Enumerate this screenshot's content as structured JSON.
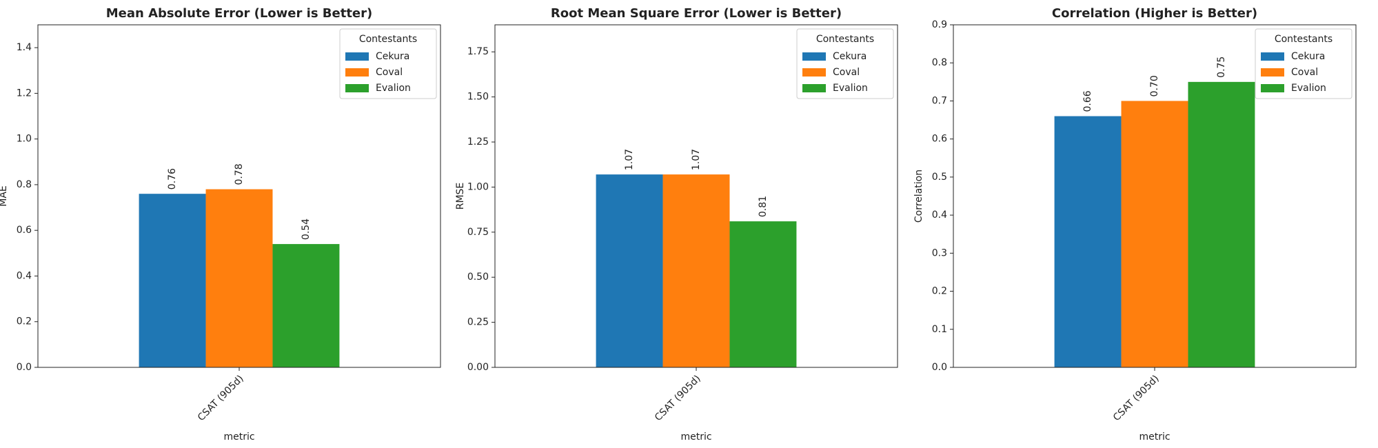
{
  "chart_data": [
    {
      "type": "bar",
      "title": "Mean Absolute Error (Lower is Better)",
      "ylabel": "MAE",
      "xlabel": "metric",
      "categories": [
        "CSAT (905d)"
      ],
      "legend_title": "Contestants",
      "series": [
        {
          "name": "Cekura",
          "color": "#1f77b4",
          "values": [
            0.76
          ],
          "value_labels": [
            "0.76"
          ]
        },
        {
          "name": "Coval",
          "color": "#ff7f0e",
          "values": [
            0.78
          ],
          "value_labels": [
            "0.78"
          ]
        },
        {
          "name": "Evalion",
          "color": "#2ca02c",
          "values": [
            0.54
          ],
          "value_labels": [
            "0.54"
          ]
        }
      ],
      "ylim": [
        0,
        1.5
      ],
      "yticks": [
        {
          "value": 0,
          "label": "0.0"
        },
        0.2,
        0.4,
        0.6,
        0.8,
        {
          "value": 1,
          "label": "1.0"
        },
        1.2,
        1.4
      ]
    },
    {
      "type": "bar",
      "title": "Root Mean Square Error (Lower is Better)",
      "ylabel": "RMSE",
      "xlabel": "metric",
      "categories": [
        "CSAT (905d)"
      ],
      "legend_title": "Contestants",
      "series": [
        {
          "name": "Cekura",
          "color": "#1f77b4",
          "values": [
            1.07
          ],
          "value_labels": [
            "1.07"
          ]
        },
        {
          "name": "Coval",
          "color": "#ff7f0e",
          "values": [
            1.07
          ],
          "value_labels": [
            "1.07"
          ]
        },
        {
          "name": "Evalion",
          "color": "#2ca02c",
          "values": [
            0.81
          ],
          "value_labels": [
            "0.81"
          ]
        }
      ],
      "ylim": [
        0,
        1.9
      ],
      "yticks": [
        {
          "value": 0,
          "label": "0.00"
        },
        0.25,
        {
          "value": 0.5,
          "label": "0.50"
        },
        0.75,
        {
          "value": 1,
          "label": "1.00"
        },
        1.25,
        {
          "value": 1.5,
          "label": "1.50"
        },
        1.75
      ]
    },
    {
      "type": "bar",
      "title": "Correlation (Higher is Better)",
      "ylabel": "Correlation",
      "xlabel": "metric",
      "categories": [
        "CSAT (905d)"
      ],
      "legend_title": "Contestants",
      "series": [
        {
          "name": "Cekura",
          "color": "#1f77b4",
          "values": [
            0.66
          ],
          "value_labels": [
            "0.66"
          ]
        },
        {
          "name": "Coval",
          "color": "#ff7f0e",
          "values": [
            0.7
          ],
          "value_labels": [
            "0.70"
          ]
        },
        {
          "name": "Evalion",
          "color": "#2ca02c",
          "values": [
            0.75
          ],
          "value_labels": [
            "0.75"
          ]
        }
      ],
      "ylim": [
        0,
        0.9
      ],
      "yticks": [
        {
          "value": 0,
          "label": "0.0"
        },
        0.1,
        0.2,
        0.3,
        0.4,
        0.5,
        0.6,
        0.7,
        0.8,
        0.9
      ]
    }
  ]
}
